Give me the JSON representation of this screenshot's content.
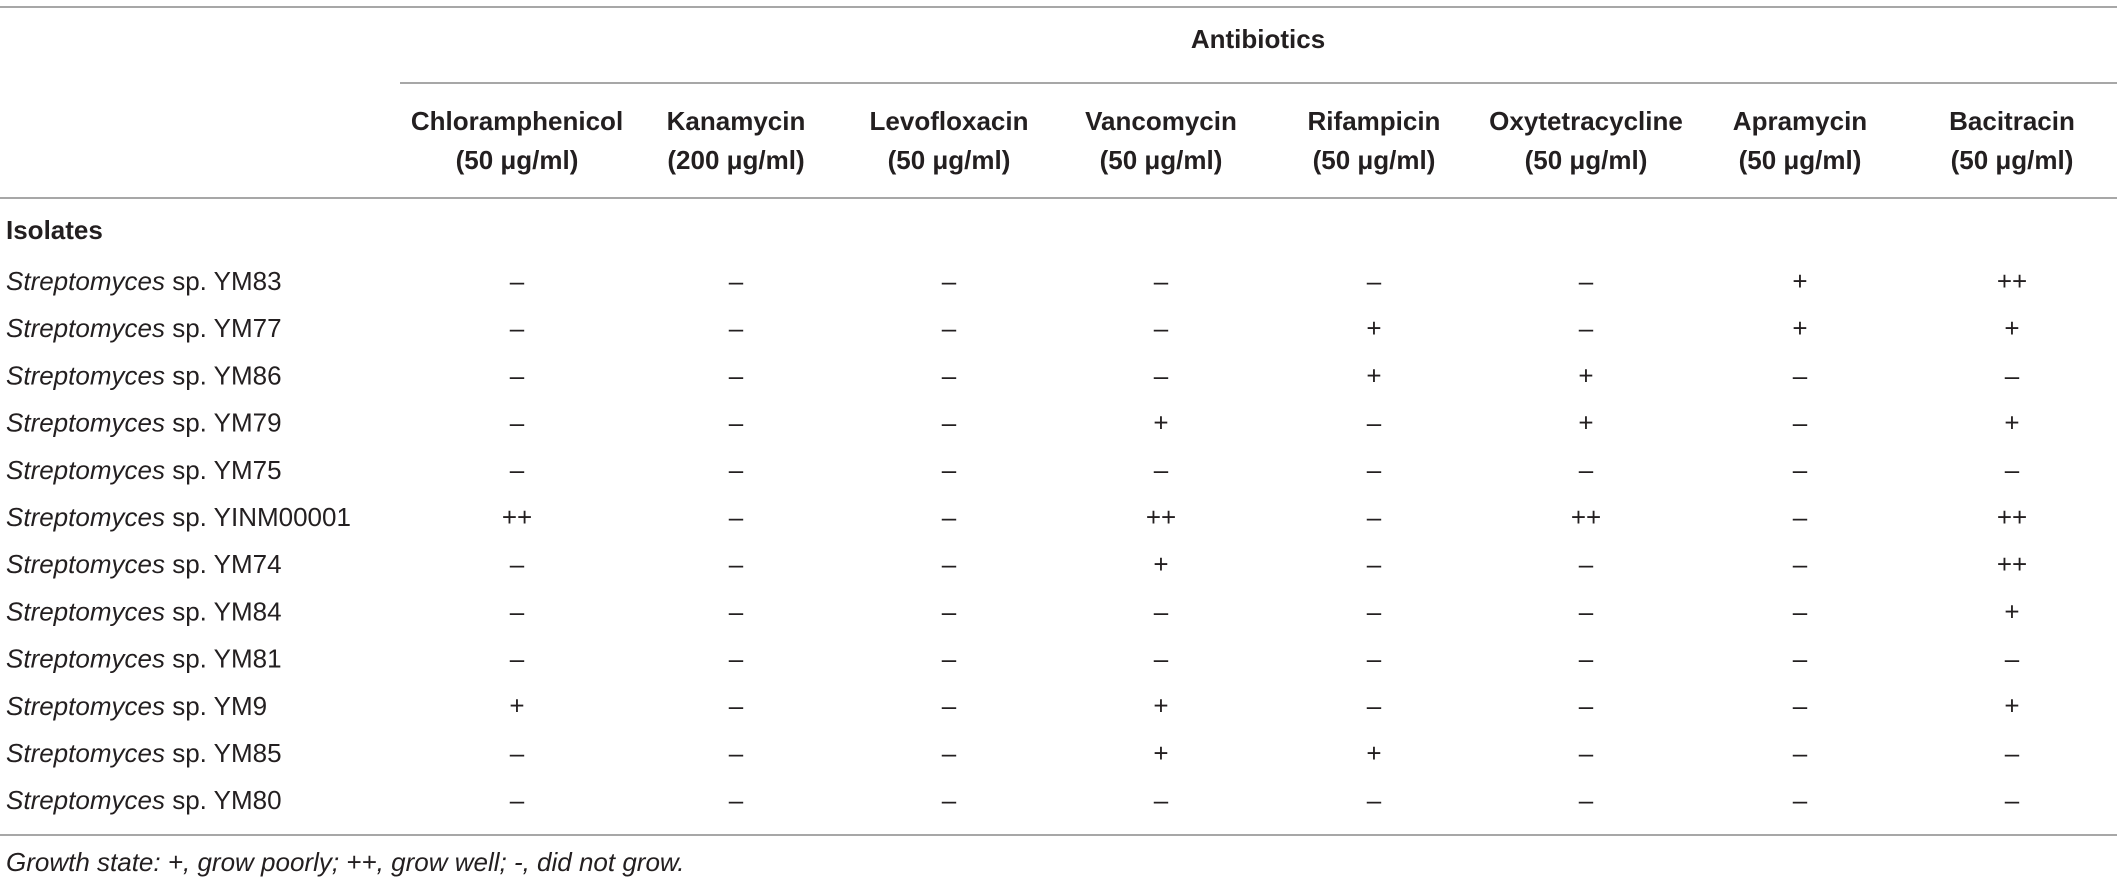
{
  "table": {
    "group_header": "Antibiotics",
    "columns": [
      {
        "name": "Chloramphenicol",
        "dose": "(50 μg/ml)"
      },
      {
        "name": "Kanamycin",
        "dose": "(200 μg/ml)"
      },
      {
        "name": "Levofloxacin",
        "dose": "(50 μg/ml)"
      },
      {
        "name": "Vancomycin",
        "dose": "(50 μg/ml)"
      },
      {
        "name": "Rifampicin",
        "dose": "(50 μg/ml)"
      },
      {
        "name": "Oxytetracycline",
        "dose": "(50 μg/ml)"
      },
      {
        "name": "Apramycin",
        "dose": "(50 μg/ml)"
      },
      {
        "name": "Bacitracin",
        "dose": "(50 μg/ml)"
      }
    ],
    "row_header": "Isolates",
    "rows": [
      {
        "genus": "Streptomyces",
        "strain": "sp. YM83",
        "cells": [
          "–",
          "–",
          "–",
          "–",
          "–",
          "–",
          "+",
          "++"
        ]
      },
      {
        "genus": "Streptomyces",
        "strain": "sp. YM77",
        "cells": [
          "–",
          "–",
          "–",
          "–",
          "+",
          "–",
          "+",
          "+"
        ]
      },
      {
        "genus": "Streptomyces",
        "strain": "sp. YM86",
        "cells": [
          "–",
          "–",
          "–",
          "–",
          "+",
          "+",
          "–",
          "–"
        ]
      },
      {
        "genus": "Streptomyces",
        "strain": "sp. YM79",
        "cells": [
          "–",
          "–",
          "–",
          "+",
          "–",
          "+",
          "–",
          "+"
        ]
      },
      {
        "genus": "Streptomyces",
        "strain": "sp. YM75",
        "cells": [
          "–",
          "–",
          "–",
          "–",
          "–",
          "–",
          "–",
          "–"
        ]
      },
      {
        "genus": "Streptomyces",
        "strain": "sp. YINM00001",
        "cells": [
          "++",
          "–",
          "–",
          "++",
          "–",
          "++",
          "–",
          "++"
        ]
      },
      {
        "genus": "Streptomyces",
        "strain": "sp. YM74",
        "cells": [
          "–",
          "–",
          "–",
          "+",
          "–",
          "–",
          "–",
          "++"
        ]
      },
      {
        "genus": "Streptomyces",
        "strain": "sp. YM84",
        "cells": [
          "–",
          "–",
          "–",
          "–",
          "–",
          "–",
          "–",
          "+"
        ]
      },
      {
        "genus": "Streptomyces",
        "strain": "sp. YM81",
        "cells": [
          "–",
          "–",
          "–",
          "–",
          "–",
          "–",
          "–",
          "–"
        ]
      },
      {
        "genus": "Streptomyces",
        "strain": "sp. YM9",
        "cells": [
          "+",
          "–",
          "–",
          "+",
          "–",
          "–",
          "–",
          "+"
        ]
      },
      {
        "genus": "Streptomyces",
        "strain": "sp. YM85",
        "cells": [
          "–",
          "–",
          "–",
          "+",
          "+",
          "–",
          "–",
          "–"
        ]
      },
      {
        "genus": "Streptomyces",
        "strain": "sp. YM80",
        "cells": [
          "–",
          "–",
          "–",
          "–",
          "–",
          "–",
          "–",
          "–"
        ]
      }
    ],
    "footnote": "Growth state: +, grow poorly; ++, grow well; -, did not grow."
  }
}
